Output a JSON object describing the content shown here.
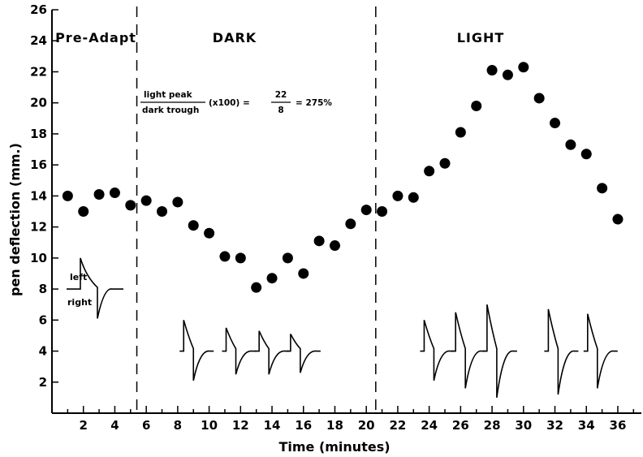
{
  "chart_data": {
    "type": "scatter",
    "xlabel": "Time (minutes)",
    "ylabel": "pen deflection (mm.)",
    "xlim": [
      0,
      37.5
    ],
    "ylim": [
      0,
      26
    ],
    "x_ticks": [
      2,
      4,
      6,
      8,
      10,
      12,
      14,
      16,
      18,
      20,
      22,
      24,
      26,
      28,
      30,
      32,
      34,
      36
    ],
    "y_ticks": [
      2,
      4,
      6,
      8,
      10,
      12,
      14,
      16,
      18,
      20,
      22,
      24,
      26
    ],
    "phase_dividers": [
      5.4,
      20.6
    ],
    "phases": [
      {
        "label": "Pre-Adapt"
      },
      {
        "label": "DARK"
      },
      {
        "label": "LIGHT"
      }
    ],
    "annotation": {
      "num": "light peak",
      "den": "dark trough",
      "mult": "(x100) =",
      "num2": "22",
      "den2": "8",
      "result": "= 275%"
    },
    "inset_labels": {
      "left": "left",
      "right": "right"
    },
    "points": [
      {
        "x": 1,
        "y": 14.0
      },
      {
        "x": 2,
        "y": 13.0
      },
      {
        "x": 3,
        "y": 14.1
      },
      {
        "x": 4,
        "y": 14.2
      },
      {
        "x": 5,
        "y": 13.4
      },
      {
        "x": 6,
        "y": 13.7
      },
      {
        "x": 7,
        "y": 13.0
      },
      {
        "x": 8,
        "y": 13.6
      },
      {
        "x": 9,
        "y": 12.1
      },
      {
        "x": 10,
        "y": 11.6
      },
      {
        "x": 11,
        "y": 10.1
      },
      {
        "x": 12,
        "y": 10.0
      },
      {
        "x": 13,
        "y": 8.1
      },
      {
        "x": 14,
        "y": 8.7
      },
      {
        "x": 15,
        "y": 10.0
      },
      {
        "x": 16,
        "y": 9.0
      },
      {
        "x": 17,
        "y": 11.1
      },
      {
        "x": 18,
        "y": 10.8
      },
      {
        "x": 19,
        "y": 12.2
      },
      {
        "x": 20,
        "y": 13.1
      },
      {
        "x": 21,
        "y": 13.0
      },
      {
        "x": 22,
        "y": 14.0
      },
      {
        "x": 23,
        "y": 13.9
      },
      {
        "x": 24,
        "y": 15.6
      },
      {
        "x": 25,
        "y": 16.1
      },
      {
        "x": 26,
        "y": 18.1
      },
      {
        "x": 27,
        "y": 19.8
      },
      {
        "x": 28,
        "y": 22.1
      },
      {
        "x": 29,
        "y": 21.8
      },
      {
        "x": 30,
        "y": 22.3
      },
      {
        "x": 31,
        "y": 20.3
      },
      {
        "x": 32,
        "y": 18.7
      },
      {
        "x": 33,
        "y": 17.3
      },
      {
        "x": 34,
        "y": 16.7
      },
      {
        "x": 35,
        "y": 14.5
      },
      {
        "x": 36,
        "y": 12.5
      }
    ],
    "traces": [
      {
        "x": 9.0,
        "peak": 6.0,
        "trough": 2.1
      },
      {
        "x": 11.7,
        "peak": 5.5,
        "trough": 2.5
      },
      {
        "x": 13.8,
        "peak": 5.3,
        "trough": 2.5
      },
      {
        "x": 15.8,
        "peak": 5.1,
        "trough": 2.6
      },
      {
        "x": 24.3,
        "peak": 6.0,
        "trough": 2.1
      },
      {
        "x": 26.3,
        "peak": 6.5,
        "trough": 1.6
      },
      {
        "x": 28.3,
        "peak": 7.0,
        "trough": 1.0
      },
      {
        "x": 32.2,
        "peak": 6.7,
        "trough": 1.2
      },
      {
        "x": 34.7,
        "peak": 6.4,
        "trough": 1.6
      }
    ],
    "inset_trace": {
      "baseline": 8,
      "peak": 10,
      "trough": 6.1
    },
    "grid": false,
    "legend": "none"
  }
}
